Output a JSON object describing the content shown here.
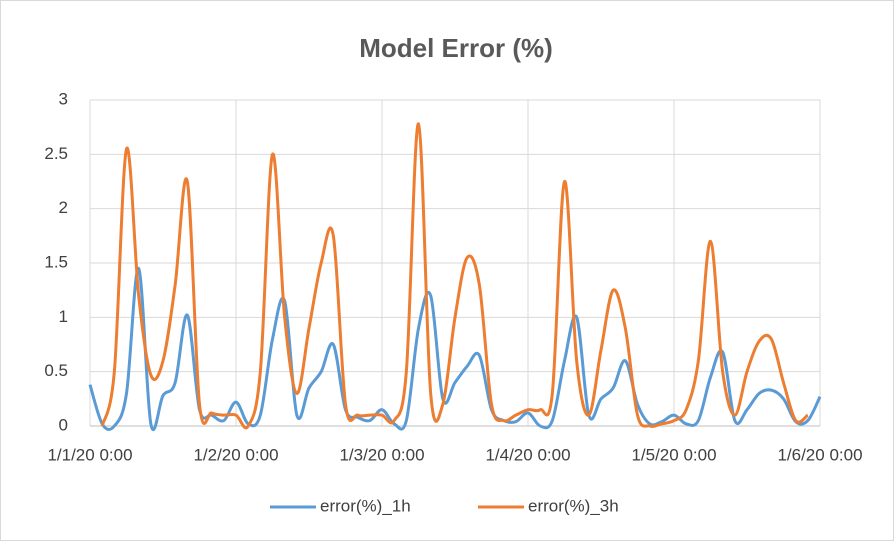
{
  "chart_data": {
    "type": "line",
    "title": "Model Error (%)",
    "categories": [
      "1/1/20 0:00",
      null,
      null,
      null,
      null,
      null,
      null,
      null,
      null,
      null,
      null,
      null,
      "1/2/20 0:00",
      null,
      null,
      null,
      null,
      null,
      null,
      null,
      null,
      null,
      null,
      null,
      "1/3/20 0:00",
      null,
      null,
      null,
      null,
      null,
      null,
      null,
      null,
      null,
      null,
      null,
      "1/4/20 0:00",
      null,
      null,
      null,
      null,
      null,
      null,
      null,
      null,
      null,
      null,
      null,
      "1/5/20 0:00",
      null,
      null,
      null,
      null,
      null,
      null,
      null,
      null,
      null,
      null,
      null,
      "1/6/20 0:00"
    ],
    "series": [
      {
        "name": "error(%)_1h",
        "color": "#5b9bd5",
        "values": [
          0.38,
          0.02,
          0.0,
          0.3,
          1.45,
          0.02,
          0.28,
          0.4,
          1.02,
          0.15,
          0.1,
          0.05,
          0.22,
          0.02,
          0.1,
          0.8,
          1.15,
          0.1,
          0.35,
          0.5,
          0.75,
          0.15,
          0.08,
          0.05,
          0.15,
          0.02,
          0.05,
          0.9,
          1.2,
          0.25,
          0.4,
          0.55,
          0.65,
          0.15,
          0.05,
          0.04,
          0.12,
          0.0,
          0.05,
          0.6,
          1.0,
          0.1,
          0.25,
          0.35,
          0.6,
          0.2,
          0.02,
          0.04,
          0.1,
          0.02,
          0.05,
          0.45,
          0.68,
          0.05,
          0.15,
          0.3,
          0.33,
          0.25,
          0.04,
          0.05,
          0.27
        ]
      },
      {
        "name": "error(%)_3h",
        "color": "#ed7d31",
        "values": [
          null,
          0.0,
          0.5,
          2.55,
          1.2,
          0.47,
          0.6,
          1.3,
          2.25,
          0.2,
          0.12,
          0.1,
          0.1,
          0.0,
          0.5,
          2.5,
          1.0,
          0.3,
          0.9,
          1.5,
          1.75,
          0.2,
          0.1,
          0.1,
          0.1,
          0.05,
          0.5,
          2.78,
          0.3,
          0.2,
          1.0,
          1.55,
          1.3,
          0.2,
          0.05,
          0.1,
          0.15,
          0.15,
          0.3,
          2.25,
          0.6,
          0.1,
          0.7,
          1.25,
          0.9,
          0.1,
          0.0,
          0.02,
          0.05,
          0.15,
          0.6,
          1.7,
          0.5,
          0.1,
          0.5,
          0.78,
          0.8,
          0.4,
          0.05,
          0.1,
          null
        ]
      }
    ],
    "ylim": [
      0,
      3
    ],
    "yticks": [
      0,
      0.5,
      1,
      1.5,
      2,
      2.5,
      3
    ],
    "grid": true,
    "legend": "bottom"
  }
}
